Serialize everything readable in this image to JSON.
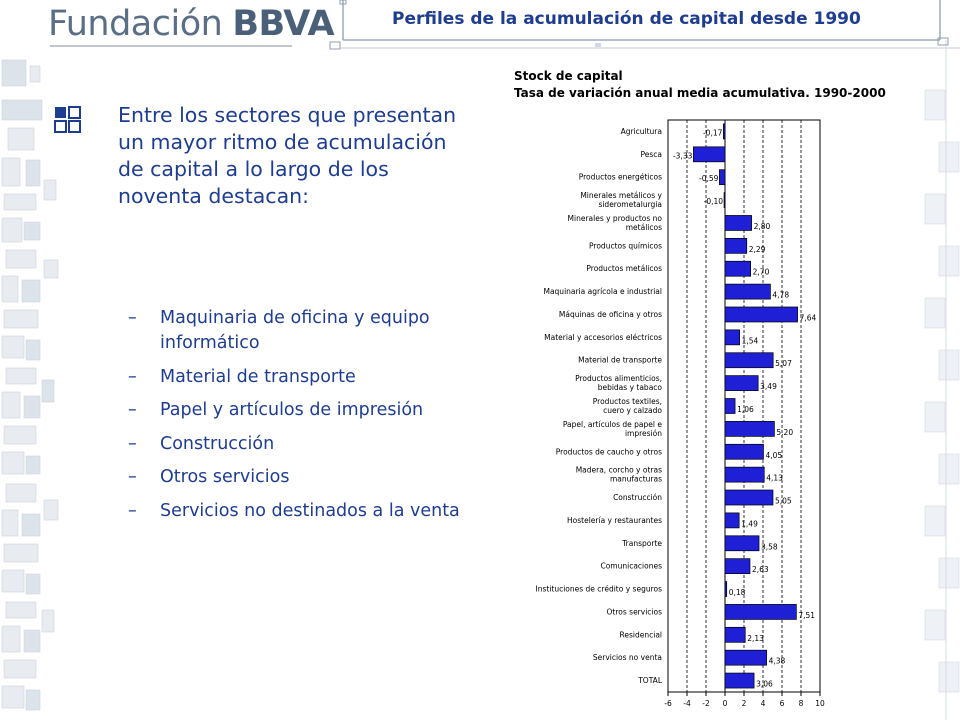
{
  "header": {
    "logo": {
      "word1": "Fundación",
      "word2": "BBVA"
    },
    "title": "Perfiles de la acumulación de capital desde 1990"
  },
  "main": {
    "intro": "Entre los sectores que presentan un mayor  ritmo de acumulación de capital a lo largo de los noventa destacan:",
    "items": [
      "Maquinaria de oficina y equipo informático",
      "Material de transporte",
      "Papel y artículos de impresión",
      "Construcción",
      "Otros servicios",
      "Servicios no destinados a la venta"
    ],
    "dash": "–"
  },
  "colors": {
    "bar": "#1f1fd6",
    "text_blue": "#1f3d8f",
    "grid": "#000000"
  },
  "chart_data": {
    "type": "bar",
    "orientation": "horizontal",
    "title": "Stock de capital",
    "subtitle": "Tasa de variación anual media acumulativa. 1990-2000",
    "xlim": [
      -6,
      10
    ],
    "xticks": [
      -6,
      -4,
      -2,
      0,
      2,
      4,
      6,
      8,
      10
    ],
    "grid": "vertical dashed",
    "categories": [
      [
        "Agricultura"
      ],
      [
        "Pesca"
      ],
      [
        "Productos energéticos"
      ],
      [
        "Minerales metálicos y",
        "siderometalurgia"
      ],
      [
        "Minerales y productos no",
        "metálicos"
      ],
      [
        "Productos químicos"
      ],
      [
        "Productos metálicos"
      ],
      [
        "Maquinaria agrícola e industrial"
      ],
      [
        "Máquinas de oficina y otros"
      ],
      [
        "Material y accesorios eléctricos"
      ],
      [
        "Material de transporte"
      ],
      [
        "Productos alimenticios,",
        "bebidas y tabaco"
      ],
      [
        "Productos textiles,",
        "cuero y calzado"
      ],
      [
        "Papel, artículos de papel e",
        "impresión"
      ],
      [
        "Productos de caucho y otros"
      ],
      [
        "Madera, corcho y otras",
        "manufacturas"
      ],
      [
        "Construcción"
      ],
      [
        "Hostelería y restaurantes"
      ],
      [
        "Transporte"
      ],
      [
        "Comunicaciones"
      ],
      [
        "Instituciones de crédito y seguros"
      ],
      [
        "Otros servicios"
      ],
      [
        "Residencial"
      ],
      [
        "Servicios no venta"
      ],
      [
        "TOTAL"
      ]
    ],
    "values": [
      -0.17,
      -3.33,
      -0.59,
      -0.1,
      2.8,
      2.29,
      2.7,
      4.78,
      7.64,
      1.54,
      5.07,
      3.49,
      1.06,
      5.2,
      4.05,
      4.13,
      5.05,
      1.49,
      3.58,
      2.63,
      0.18,
      7.51,
      2.13,
      4.38,
      3.06
    ],
    "labels": [
      "-0,17",
      "-3,33",
      "-0,59",
      "-0,10",
      "2,80",
      "2,29",
      "2,70",
      "4,78",
      "7,64",
      "1,54",
      "5,07",
      "3,49",
      "1,06",
      "5,20",
      "4,05",
      "4,13",
      "5,05",
      "1,49",
      "3,58",
      "2,63",
      "0,18",
      "7,51",
      "2,13",
      "4,38",
      "3,06"
    ]
  }
}
